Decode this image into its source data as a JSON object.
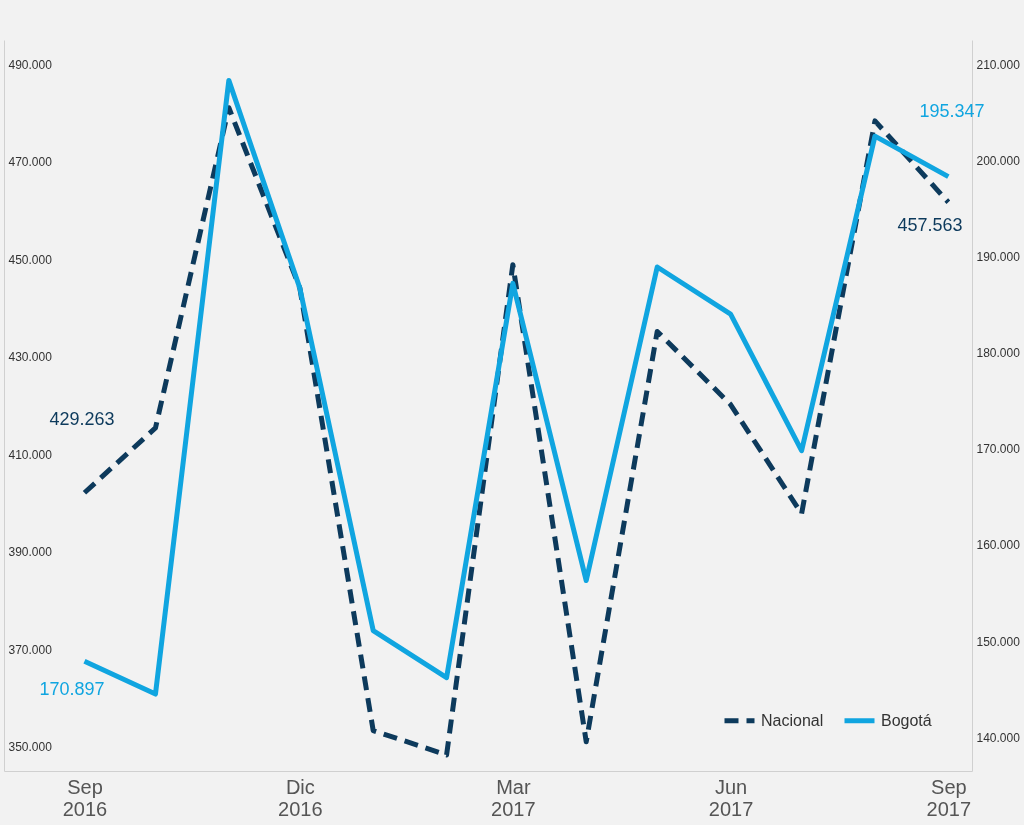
{
  "chart_data": {
    "type": "line",
    "x": [
      "2016-09",
      "2016-10",
      "2016-11",
      "2016-12",
      "2017-01",
      "2017-02",
      "2017-03",
      "2017-04",
      "2017-05",
      "2017-06",
      "2017-07",
      "2017-08",
      "2017-09"
    ],
    "series": [
      {
        "name": "Nacional",
        "color": "#0d3a5c",
        "line_style": "dashed",
        "values": [
          402.1,
          415.4,
          481.1,
          444.1,
          353.3,
          348.3,
          448.9,
          351.0,
          435.2,
          420.2,
          397.8,
          478.4,
          461.7
        ]
      },
      {
        "name": "Bogotá",
        "color": "#10a5e0",
        "line_style": "solid",
        "axis": "y2",
        "values": [
          147.9,
          144.5,
          208.3,
          186.7,
          151.1,
          146.2,
          187.2,
          156.3,
          188.9,
          184.0,
          169.8,
          202.5,
          198.3
        ]
      }
    ],
    "xlim": [
      "2016-07-29",
      "2017-09-11"
    ],
    "xticks": [
      {
        "value": "2016-09",
        "label": "Sep 2016"
      },
      {
        "value": "2016-12",
        "label": "Dic 2016"
      },
      {
        "value": "2017-03",
        "label": "Mar 2017"
      },
      {
        "value": "2017-06",
        "label": "Jun 2017"
      },
      {
        "value": "2017-09",
        "label": "Sep 2017"
      }
    ],
    "ylim": [
      345,
      495
    ],
    "yticks": [
      {
        "value": 350,
        "label": "350.000"
      },
      {
        "value": 370,
        "label": "370.000"
      },
      {
        "value": 390,
        "label": "390.000"
      },
      {
        "value": 410,
        "label": "410.000"
      },
      {
        "value": 430,
        "label": "430.000"
      },
      {
        "value": 450,
        "label": "450.000"
      },
      {
        "value": 470,
        "label": "470.000"
      },
      {
        "value": 490,
        "label": "490.000"
      }
    ],
    "y2lim": [
      136.5,
      212.5
    ],
    "y2ticks": [
      {
        "value": 140,
        "label": "140.000"
      },
      {
        "value": 150,
        "label": "150.000"
      },
      {
        "value": 160,
        "label": "160.000"
      },
      {
        "value": 170,
        "label": "170.000"
      },
      {
        "value": 180,
        "label": "180.000"
      },
      {
        "value": 190,
        "label": "190.000"
      },
      {
        "value": 200,
        "label": "200.000"
      },
      {
        "value": 210,
        "label": "210.000"
      }
    ],
    "annotations": [
      "429.263",
      "170.897",
      "195.347",
      "457.563"
    ],
    "legend": "bottom right",
    "grid": false
  }
}
